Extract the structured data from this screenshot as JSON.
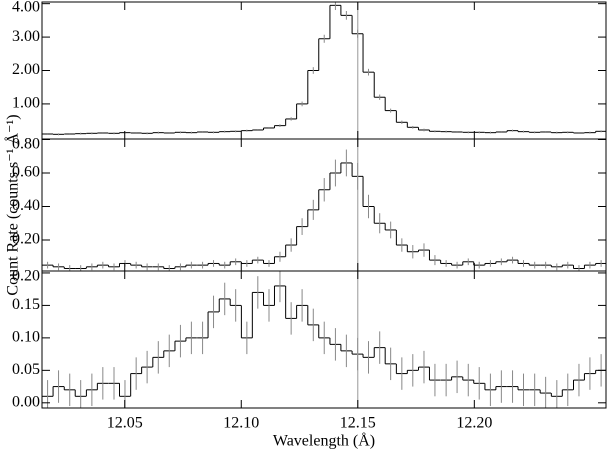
{
  "chart_data": [
    {
      "type": "step",
      "color": "#000000",
      "x": [
        12.0169,
        12.0216,
        12.0264,
        12.0311,
        12.0359,
        12.0406,
        12.0454,
        12.0501,
        12.0549,
        12.0596,
        12.0644,
        12.0691,
        12.0739,
        12.0786,
        12.0834,
        12.0881,
        12.0929,
        12.0976,
        12.1024,
        12.1071,
        12.1119,
        12.1166,
        12.1214,
        12.1261,
        12.1309,
        12.1356,
        12.1404,
        12.1451,
        12.1499,
        12.1546,
        12.1594,
        12.1641,
        12.1689,
        12.1736,
        12.1784,
        12.1831,
        12.1879,
        12.1926,
        12.1974,
        12.2021,
        12.2069,
        12.2116,
        12.2164,
        12.2211,
        12.2259,
        12.2306,
        12.2354,
        12.2401,
        12.2449,
        12.2496,
        12.2544
      ],
      "values": [
        0.1,
        0.09,
        0.1,
        0.11,
        0.12,
        0.13,
        0.12,
        0.14,
        0.13,
        0.12,
        0.14,
        0.13,
        0.15,
        0.14,
        0.16,
        0.15,
        0.17,
        0.18,
        0.2,
        0.22,
        0.28,
        0.35,
        0.55,
        1.0,
        2.0,
        2.95,
        3.95,
        3.65,
        3.1,
        1.95,
        1.2,
        0.8,
        0.45,
        0.3,
        0.22,
        0.18,
        0.17,
        0.16,
        0.15,
        0.15,
        0.14,
        0.16,
        0.2,
        0.17,
        0.15,
        0.16,
        0.14,
        0.15,
        0.13,
        0.14,
        0.18
      ],
      "errors": [
        0.03,
        0.03,
        0.03,
        0.03,
        0.03,
        0.03,
        0.03,
        0.03,
        0.03,
        0.03,
        0.03,
        0.03,
        0.03,
        0.03,
        0.03,
        0.03,
        0.03,
        0.03,
        0.03,
        0.03,
        0.03,
        0.04,
        0.05,
        0.07,
        0.1,
        0.12,
        0.14,
        0.13,
        0.12,
        0.1,
        0.08,
        0.06,
        0.05,
        0.04,
        0.04,
        0.03,
        0.03,
        0.03,
        0.03,
        0.03,
        0.03,
        0.03,
        0.03,
        0.03,
        0.03,
        0.03,
        0.03,
        0.03,
        0.03,
        0.03,
        0.03
      ],
      "xlim": [
        12.0145,
        12.2565
      ],
      "ylim": [
        -0.05,
        4.05
      ],
      "yticks": [
        {
          "value": 1,
          "label": "1.00"
        },
        {
          "value": 2,
          "label": "2.00"
        },
        {
          "value": 3,
          "label": "3.00"
        },
        {
          "value": 4,
          "label": "4.00"
        }
      ],
      "vline": 12.15
    },
    {
      "type": "step",
      "color": "#000000",
      "ylabel": "Count Rate (counts s⁻¹ Å⁻¹)",
      "x": [
        12.0169,
        12.0216,
        12.0264,
        12.0311,
        12.0359,
        12.0406,
        12.0454,
        12.0501,
        12.0549,
        12.0596,
        12.0644,
        12.0691,
        12.0739,
        12.0786,
        12.0834,
        12.0881,
        12.0929,
        12.0976,
        12.1024,
        12.1071,
        12.1119,
        12.1166,
        12.1214,
        12.1261,
        12.1309,
        12.1356,
        12.1404,
        12.1451,
        12.1499,
        12.1546,
        12.1594,
        12.1641,
        12.1689,
        12.1736,
        12.1784,
        12.1831,
        12.1879,
        12.1926,
        12.1974,
        12.2021,
        12.2069,
        12.2116,
        12.2164,
        12.2211,
        12.2259,
        12.2306,
        12.2354,
        12.2401,
        12.2449,
        12.2496,
        12.2544
      ],
      "values": [
        0.05,
        0.04,
        0.03,
        0.03,
        0.04,
        0.05,
        0.04,
        0.06,
        0.05,
        0.04,
        0.04,
        0.03,
        0.04,
        0.05,
        0.05,
        0.06,
        0.05,
        0.07,
        0.06,
        0.08,
        0.06,
        0.1,
        0.17,
        0.28,
        0.38,
        0.5,
        0.6,
        0.66,
        0.58,
        0.4,
        0.3,
        0.26,
        0.17,
        0.13,
        0.14,
        0.08,
        0.06,
        0.05,
        0.07,
        0.05,
        0.06,
        0.07,
        0.08,
        0.06,
        0.05,
        0.05,
        0.04,
        0.05,
        0.03,
        0.05,
        0.06
      ],
      "errors": [
        0.02,
        0.02,
        0.02,
        0.02,
        0.02,
        0.02,
        0.02,
        0.02,
        0.02,
        0.02,
        0.02,
        0.02,
        0.02,
        0.02,
        0.02,
        0.02,
        0.02,
        0.02,
        0.02,
        0.02,
        0.02,
        0.03,
        0.04,
        0.05,
        0.06,
        0.07,
        0.08,
        0.08,
        0.08,
        0.07,
        0.06,
        0.05,
        0.04,
        0.04,
        0.04,
        0.03,
        0.02,
        0.02,
        0.02,
        0.02,
        0.02,
        0.02,
        0.02,
        0.02,
        0.02,
        0.02,
        0.02,
        0.02,
        0.02,
        0.02,
        0.02
      ],
      "xlim": [
        12.0145,
        12.2565
      ],
      "ylim": [
        0.015,
        0.803
      ],
      "yticks": [
        {
          "value": 0.2,
          "label": "0.20"
        },
        {
          "value": 0.4,
          "label": "0.40"
        },
        {
          "value": 0.6,
          "label": "0.60"
        },
        {
          "value": 0.8,
          "label": "0.80"
        }
      ],
      "vline": 12.15
    },
    {
      "type": "step",
      "color": "#000000",
      "xlabel": "Wavelength (Å)",
      "x": [
        12.0169,
        12.0216,
        12.0264,
        12.0311,
        12.0359,
        12.0406,
        12.0454,
        12.0501,
        12.0549,
        12.0596,
        12.0644,
        12.0691,
        12.0739,
        12.0786,
        12.0834,
        12.0881,
        12.0929,
        12.0976,
        12.1024,
        12.1071,
        12.1119,
        12.1166,
        12.1214,
        12.1261,
        12.1309,
        12.1356,
        12.1404,
        12.1451,
        12.1499,
        12.1546,
        12.1594,
        12.1641,
        12.1689,
        12.1736,
        12.1784,
        12.1831,
        12.1879,
        12.1926,
        12.1974,
        12.2021,
        12.2069,
        12.2116,
        12.2164,
        12.2211,
        12.2259,
        12.2306,
        12.2354,
        12.2401,
        12.2449,
        12.2496,
        12.2544
      ],
      "values": [
        0.01,
        0.025,
        0.02,
        0.01,
        0.02,
        0.03,
        0.03,
        0.01,
        0.045,
        0.055,
        0.07,
        0.08,
        0.095,
        0.1,
        0.1,
        0.14,
        0.16,
        0.15,
        0.1,
        0.17,
        0.15,
        0.18,
        0.13,
        0.15,
        0.12,
        0.1,
        0.09,
        0.08,
        0.075,
        0.07,
        0.085,
        0.06,
        0.045,
        0.05,
        0.055,
        0.035,
        0.035,
        0.04,
        0.035,
        0.03,
        0.02,
        0.025,
        0.025,
        0.02,
        0.02,
        0.015,
        0.01,
        0.02,
        0.035,
        0.045,
        0.05
      ],
      "errors": [
        0.025,
        0.025,
        0.025,
        0.025,
        0.025,
        0.025,
        0.025,
        0.025,
        0.025,
        0.025,
        0.025,
        0.025,
        0.025,
        0.025,
        0.025,
        0.025,
        0.025,
        0.025,
        0.025,
        0.025,
        0.025,
        0.025,
        0.025,
        0.025,
        0.025,
        0.025,
        0.025,
        0.025,
        0.025,
        0.025,
        0.025,
        0.025,
        0.025,
        0.025,
        0.025,
        0.025,
        0.025,
        0.025,
        0.025,
        0.025,
        0.025,
        0.025,
        0.025,
        0.025,
        0.025,
        0.025,
        0.025,
        0.025,
        0.025,
        0.025,
        0.025
      ],
      "xlim": [
        12.0145,
        12.2565
      ],
      "ylim": [
        -0.008,
        0.203
      ],
      "xticks": [
        {
          "value": 12.05,
          "label": "12.05"
        },
        {
          "value": 12.1,
          "label": "12.10"
        },
        {
          "value": 12.15,
          "label": "12.15"
        },
        {
          "value": 12.2,
          "label": "12.20"
        }
      ],
      "yticks": [
        {
          "value": 0,
          "label": "0.00"
        },
        {
          "value": 0.05,
          "label": "0.05"
        },
        {
          "value": 0.1,
          "label": "0.10"
        },
        {
          "value": 0.15,
          "label": "0.15"
        },
        {
          "value": 0.2,
          "label": "0.20"
        }
      ],
      "vline": 12.15
    }
  ]
}
